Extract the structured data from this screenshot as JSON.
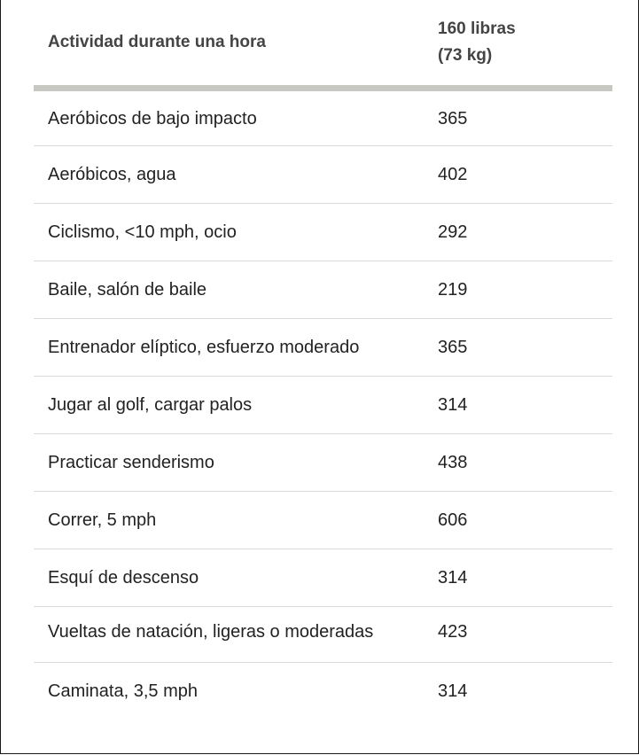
{
  "table": {
    "headers": {
      "activity": "Actividad durante una hora",
      "weight_line1": "160 libras",
      "weight_line2": "(73 kg)"
    },
    "rows": [
      {
        "activity": "Aeróbicos de bajo impacto",
        "calories": "365"
      },
      {
        "activity": "Aeróbicos, agua",
        "calories": "402"
      },
      {
        "activity": "Ciclismo, <10 mph, ocio",
        "calories": "292"
      },
      {
        "activity": "Baile, salón de baile",
        "calories": "219"
      },
      {
        "activity": "Entrenador elíptico, esfuerzo moderado",
        "calories": "365"
      },
      {
        "activity": "Jugar al golf, cargar palos",
        "calories": "314"
      },
      {
        "activity": "Practicar senderismo",
        "calories": "438"
      },
      {
        "activity": "Correr, 5 mph",
        "calories": "606"
      },
      {
        "activity": "Esquí de descenso",
        "calories": "314"
      },
      {
        "activity": "Vueltas de natación, ligeras o moderadas",
        "calories": "423"
      },
      {
        "activity": "Caminata, 3,5 mph",
        "calories": "314"
      }
    ]
  }
}
